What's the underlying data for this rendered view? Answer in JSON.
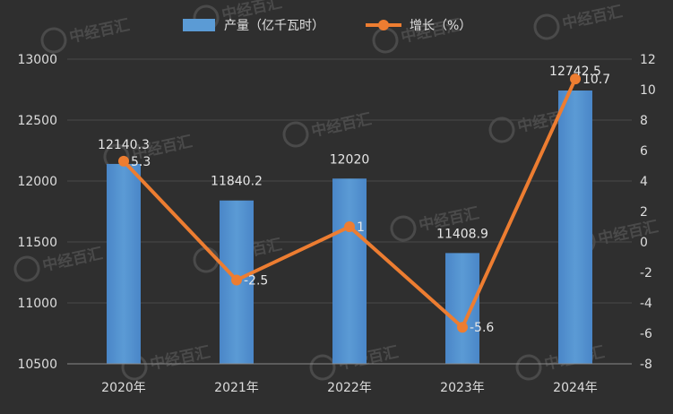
{
  "chart_data": {
    "type": "bar",
    "categories": [
      "2020年",
      "2021年",
      "2022年",
      "2023年",
      "2024年"
    ],
    "series": [
      {
        "name": "产量（亿千瓦时）",
        "kind": "bar",
        "axis": "left",
        "values": [
          12140.3,
          11840.2,
          12020,
          11408.9,
          12742.5
        ],
        "labels": [
          "12140.3",
          "11840.2",
          "12020",
          "11408.9",
          "12742.5"
        ],
        "color": "#5b9bd5"
      },
      {
        "name": "增长（%）",
        "kind": "line",
        "axis": "right",
        "values": [
          5.3,
          -2.5,
          1,
          -5.6,
          10.7
        ],
        "labels": [
          "5.3",
          "-2.5",
          "1",
          "-5.6",
          "10.7"
        ],
        "color": "#ed7d31"
      }
    ],
    "y_left": {
      "range": [
        10500,
        13000
      ],
      "ticks": [
        "10500",
        "11000",
        "11500",
        "12000",
        "12500",
        "13000"
      ]
    },
    "y_right": {
      "range": [
        -8,
        12
      ],
      "ticks": [
        "-8",
        "-6",
        "-4",
        "-2",
        "0",
        "2",
        "4",
        "6",
        "8",
        "10",
        "12"
      ]
    },
    "grid": true,
    "legend": "top-center",
    "watermark": "中经百汇"
  }
}
